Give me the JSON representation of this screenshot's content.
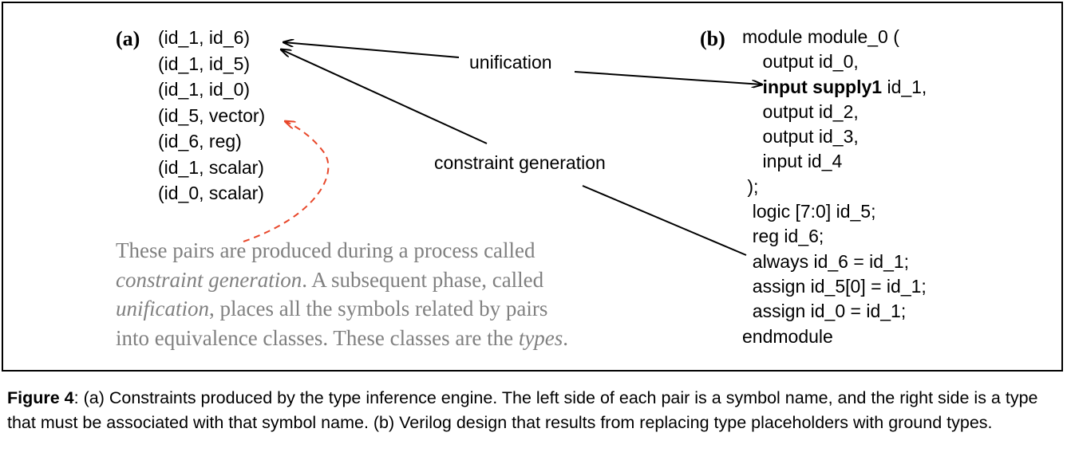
{
  "figure": {
    "panel_a": {
      "label": "(a)",
      "pairs": [
        "(id_1, id_6)",
        "(id_1, id_5)",
        "(id_1, id_0)",
        "(id_5, vector)",
        "(id_6, reg)",
        "(id_1, scalar)",
        "(id_0, scalar)"
      ]
    },
    "arrows": {
      "unification_label": "unification",
      "constraint_generation_label": "constraint generation"
    },
    "note": {
      "line1": "These pairs are produced during a process called",
      "line2_em": "constraint generation",
      "line2_rest": ". A subsequent phase, called",
      "line3_em": "unification",
      "line3_rest": ", places all the symbols related by pairs",
      "line4_pre": "into equivalence classes. These classes are the ",
      "line4_em": "types",
      "line4_post": "."
    },
    "panel_b": {
      "label": "(b)",
      "lines": {
        "l0": "module module_0 (",
        "l1": "    output id_0,",
        "l2_bold": "    input supply1",
        "l2_rest": " id_1,",
        "l3": "    output id_2,",
        "l4": "    output id_3,",
        "l5": "    input id_4",
        "l6": " );",
        "l7": "  logic [7:0] id_5;",
        "l8": "  reg id_6;",
        "l9": "  always id_6 = id_1;",
        "l10": "  assign id_5[0] = id_1;",
        "l11": "  assign id_0 = id_1;",
        "l12": "endmodule"
      }
    }
  },
  "caption": {
    "label": "Figure 4",
    "text": ": (a) Constraints produced by the type inference engine. The left side of each pair is a symbol name, and the right side is a type that must be associated with that symbol name. (b) Verilog design that results from replacing type placeholders with ground types."
  },
  "colors": {
    "note_text": "#808080",
    "dashed_arrow": "#e8472a",
    "ink": "#000000"
  }
}
